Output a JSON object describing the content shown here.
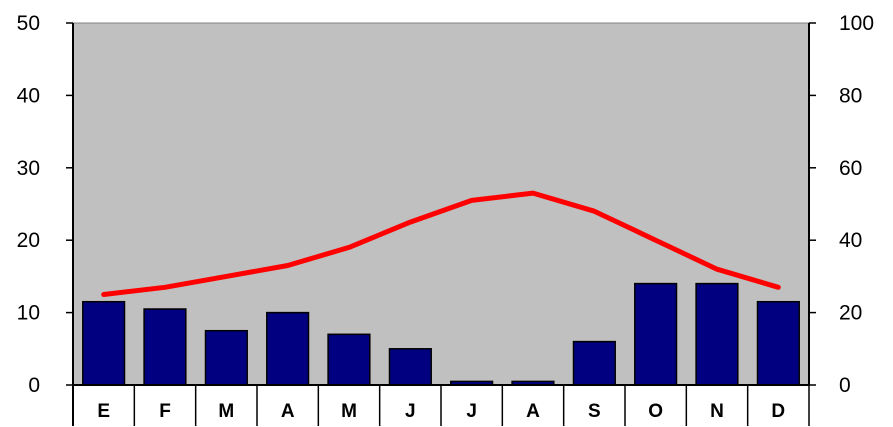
{
  "chart_data": {
    "type": "bar",
    "categories": [
      "E",
      "F",
      "M",
      "A",
      "M",
      "J",
      "J",
      "A",
      "S",
      "O",
      "N",
      "D"
    ],
    "series": [
      {
        "type": "bar",
        "axis": "right",
        "color": "#000080",
        "values": [
          23,
          21,
          15,
          20,
          14,
          10,
          1,
          1,
          12,
          28,
          28,
          23
        ]
      },
      {
        "type": "line",
        "axis": "left",
        "color": "#ff0000",
        "values": [
          12.5,
          13.5,
          15,
          16.5,
          19,
          22.5,
          25.5,
          26.5,
          24,
          20,
          16,
          13.5
        ]
      }
    ],
    "ylim_left": [
      0,
      50
    ],
    "yticks_left": [
      "0",
      "10",
      "20",
      "30",
      "40",
      "50"
    ],
    "ylim_right": [
      0,
      100
    ],
    "yticks_right": [
      "0",
      "20",
      "40",
      "60",
      "80",
      "100"
    ],
    "title": "",
    "xlabel": "",
    "ylabel_left": "",
    "ylabel_right": "",
    "plot_background": "#c0c0c0",
    "grid": false,
    "legend": "none"
  }
}
